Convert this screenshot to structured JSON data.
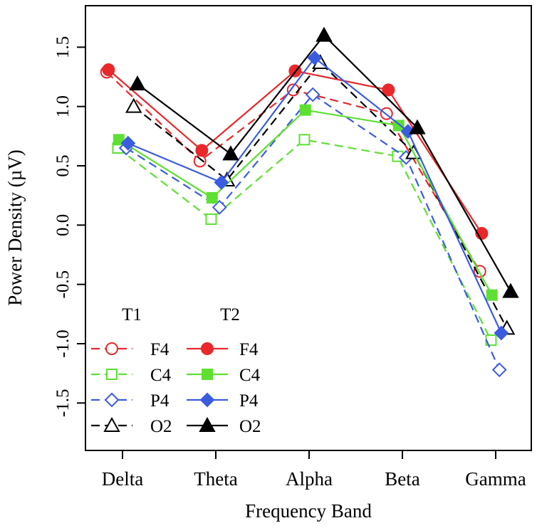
{
  "chart_data": {
    "type": "line",
    "title": "",
    "xlabel": "Frequency Band",
    "ylabel": "Power Density (µV)",
    "categories": [
      "Delta",
      "Theta",
      "Alpha",
      "Beta",
      "Gamma"
    ],
    "ylim": [
      -1.9,
      1.85
    ],
    "yticks": [
      -1.5,
      -1.0,
      -0.5,
      0.0,
      0.5,
      1.0,
      1.5
    ],
    "ytick_labels": [
      "-1.5",
      "-1.0",
      "-0.5",
      "0.0",
      "0.5",
      "1.0",
      "1.5"
    ],
    "grid": false,
    "legend": {
      "position": "bottom-left",
      "group_labels": [
        "T1",
        "T2"
      ]
    },
    "series": [
      {
        "name": "F4",
        "group": "T1",
        "line": "dashed",
        "marker": "circle",
        "filled": false,
        "color": "#e8282b",
        "offset": -0.17,
        "values": [
          1.29,
          0.54,
          1.14,
          0.94,
          -0.39
        ]
      },
      {
        "name": "C4",
        "group": "T1",
        "line": "dashed",
        "marker": "square",
        "filled": false,
        "color": "#5ee033",
        "offset": -0.05,
        "values": [
          0.65,
          0.05,
          0.72,
          0.58,
          -0.97
        ]
      },
      {
        "name": "P4",
        "group": "T1",
        "line": "dashed",
        "marker": "diamond",
        "filled": false,
        "color": "#3c5ce0",
        "offset": 0.04,
        "values": [
          0.65,
          0.15,
          1.1,
          0.57,
          -1.22
        ]
      },
      {
        "name": "O2",
        "group": "T1",
        "line": "dashed",
        "marker": "triangle",
        "filled": false,
        "color": "#000000",
        "offset": 0.12,
        "values": [
          1.0,
          0.38,
          1.37,
          0.61,
          -0.87
        ]
      },
      {
        "name": "F4",
        "group": "T2",
        "line": "solid",
        "marker": "circle",
        "filled": true,
        "color": "#e8282b",
        "offset": -0.15,
        "values": [
          1.31,
          0.63,
          1.3,
          1.14,
          -0.07
        ]
      },
      {
        "name": "C4",
        "group": "T2",
        "line": "solid",
        "marker": "square",
        "filled": true,
        "color": "#5ee033",
        "offset": -0.04,
        "values": [
          0.72,
          0.23,
          0.97,
          0.84,
          -0.59
        ]
      },
      {
        "name": "P4",
        "group": "T2",
        "line": "solid",
        "marker": "diamond",
        "filled": true,
        "color": "#3c5ce0",
        "offset": 0.06,
        "values": [
          0.69,
          0.36,
          1.41,
          0.79,
          -0.91
        ]
      },
      {
        "name": "O2",
        "group": "T2",
        "line": "solid",
        "marker": "triangle",
        "filled": true,
        "color": "#000000",
        "offset": 0.16,
        "values": [
          1.19,
          0.6,
          1.6,
          0.82,
          -0.56
        ]
      }
    ]
  }
}
